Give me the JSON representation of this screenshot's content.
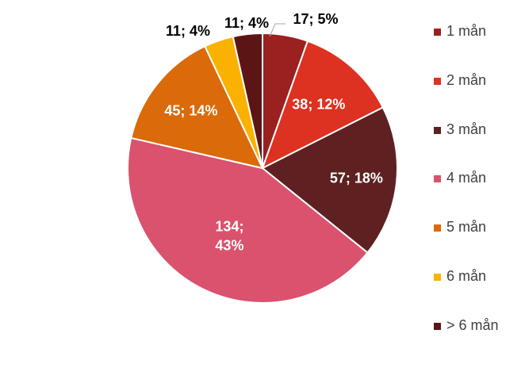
{
  "chart_data": {
    "type": "pie",
    "categories": [
      "1 mån",
      "2 mån",
      "3 mån",
      "4 mån",
      "5 mån",
      "6 mån",
      "> 6 mån"
    ],
    "values": [
      17,
      38,
      57,
      134,
      45,
      11,
      11
    ],
    "percentages": [
      5,
      12,
      18,
      43,
      14,
      4,
      4
    ],
    "data_labels": [
      "17; 5%",
      "38; 12%",
      "57; 18%",
      "134; 43%",
      "45; 14%",
      "11; 4%",
      "11; 4%"
    ],
    "colors": [
      "#9B2020",
      "#DD3121",
      "#5E2020",
      "#DA526D",
      "#DA6A0A",
      "#FBB100",
      "#5C1515"
    ],
    "legend_placement": "right",
    "start_angle_deg": 0,
    "direction": "clockwise"
  }
}
